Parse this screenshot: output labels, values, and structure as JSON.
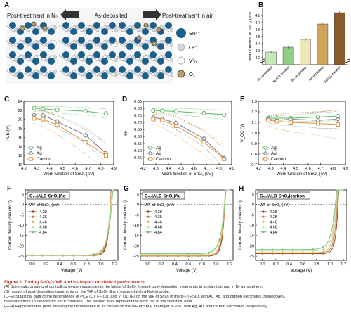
{
  "panelA": {
    "letter": "A",
    "label_left": "Post-treatment in N₂",
    "label_mid": "As-deposited",
    "label_right": "Post-treatment in air",
    "legend": [
      {
        "key": "sn",
        "label": "Sn⁴⁺",
        "color": "#1c5f8a"
      },
      {
        "key": "o",
        "label": "O²⁻",
        "color": "#d4d4d4"
      },
      {
        "key": "vo",
        "label": "V⁰ₒ",
        "color": "#ffffff"
      },
      {
        "key": "o2",
        "label": "O₂",
        "color": "#b99a6b"
      }
    ]
  },
  "panelB": {
    "letter": "B",
    "ylabel": "Work function of SnO₂ (eV)",
    "categories": [
      "N₂-annealed",
      "N₂/UV treated",
      "As-deposited",
      "Air-annealed",
      "Air/UV treated"
    ]
  },
  "lineLegend": [
    {
      "label": "Ag",
      "color": "#5cb85c",
      "marker": "circle"
    },
    {
      "label": "Au",
      "color": "#7a7a8a",
      "marker": "diamond"
    },
    {
      "label": "Carbon",
      "color": "#e0913d",
      "marker": "square"
    }
  ],
  "jvLegendTitle": "WF of SnO₂ (eV)",
  "jvLegendColors": [
    "#8b3a14",
    "#c4772f",
    "#e3b06a",
    "#b8dc9c",
    "#78c27a"
  ],
  "chart_data": [
    {
      "type": "bar",
      "panel": "B",
      "categories": [
        "N₂-annealed",
        "N₂/UV treated",
        "As-deposited",
        "Air-annealed",
        "Air/UV treated"
      ],
      "values": [
        4.28,
        4.35,
        4.46,
        4.68,
        4.84
      ],
      "colors": [
        "#c7e7b8",
        "#8fcf86",
        "#efe6b8",
        "#cfa45a",
        "#8a5a2e"
      ],
      "ylim": [
        4.1,
        4.9
      ],
      "yticks": [
        4.2,
        4.3,
        4.4,
        4.5,
        4.6,
        4.7,
        4.8
      ],
      "ylabel": "Work function of SnO₂ (eV)"
    },
    {
      "type": "line",
      "panel": "C",
      "ylabel": "PCE (%)",
      "xlabel": "Work function of SnO₂ (eV)",
      "x": [
        4.28,
        4.35,
        4.46,
        4.68,
        4.84
      ],
      "xlim": [
        4.2,
        4.9
      ],
      "xticks": [
        4.2,
        4.3,
        4.4,
        4.5,
        4.6,
        4.7,
        4.8,
        4.9
      ],
      "ylim": [
        10,
        24
      ],
      "yticks": [
        10,
        12,
        14,
        16,
        18,
        20,
        22,
        24
      ],
      "series": [
        {
          "name": "Ag",
          "values": [
            22.5,
            22.3,
            22.1,
            21.8,
            21.3
          ]
        },
        {
          "name": "Au",
          "values": [
            21.0,
            20.9,
            19.5,
            16.5,
            12.5
          ]
        },
        {
          "name": "Carbon",
          "values": [
            20.2,
            20.0,
            18.8,
            15.0,
            12.0
          ]
        }
      ]
    },
    {
      "type": "line",
      "panel": "D",
      "ylabel": "FF",
      "xlabel": "Work function of SnO₂ (eV)",
      "x": [
        4.28,
        4.35,
        4.46,
        4.68,
        4.84
      ],
      "xlim": [
        4.2,
        4.9
      ],
      "xticks": [
        4.2,
        4.3,
        4.4,
        4.5,
        4.6,
        4.7,
        4.8,
        4.9
      ],
      "ylim": [
        0.4,
        0.85
      ],
      "yticks": [
        0.45,
        0.5,
        0.55,
        0.6,
        0.65,
        0.7,
        0.75,
        0.8,
        0.85
      ],
      "series": [
        {
          "name": "Ag",
          "values": [
            0.785,
            0.782,
            0.778,
            0.765,
            0.755
          ]
        },
        {
          "name": "Au",
          "values": [
            0.735,
            0.725,
            0.695,
            0.585,
            0.445
          ]
        },
        {
          "name": "Carbon",
          "values": [
            0.722,
            0.715,
            0.675,
            0.56,
            0.44
          ]
        }
      ]
    },
    {
      "type": "line",
      "panel": "E",
      "ylabel": "V_OC (V)",
      "xlabel": "Work function of SnO₂ (eV)",
      "x": [
        4.28,
        4.35,
        4.46,
        4.68,
        4.84
      ],
      "xlim": [
        4.2,
        4.9
      ],
      "xticks": [
        4.2,
        4.3,
        4.4,
        4.5,
        4.6,
        4.7,
        4.8,
        4.9
      ],
      "ylim": [
        0.7,
        1.3
      ],
      "yticks": [
        0.7,
        0.8,
        0.9,
        1.0,
        1.1,
        1.2,
        1.3
      ],
      "series": [
        {
          "name": "Ag",
          "values": [
            1.14,
            1.14,
            1.14,
            1.15,
            1.16
          ]
        },
        {
          "name": "Au",
          "values": [
            1.13,
            1.12,
            1.13,
            1.12,
            1.13
          ]
        },
        {
          "name": "Carbon",
          "values": [
            1.12,
            1.11,
            1.1,
            1.09,
            1.08
          ]
        }
      ]
    },
    {
      "type": "line",
      "panel": "F",
      "title": "C₆₀|ALD-SnOₓ|Ag",
      "xlabel": "Voltage (V)",
      "ylabel": "Current density (mA cm⁻²)",
      "xlim": [
        -0.1,
        1.25
      ],
      "xticks": [
        0.0,
        0.2,
        0.4,
        0.6,
        0.8,
        1.0,
        1.2
      ],
      "ylim": [
        -27,
        7
      ],
      "yticks": [
        -25,
        -20,
        -15,
        -10,
        -5,
        0,
        5
      ],
      "series": [
        {
          "name": "4.28",
          "jsc": -24.7,
          "voc": 1.14
        },
        {
          "name": "4.35",
          "jsc": -24.7,
          "voc": 1.14
        },
        {
          "name": "4.46",
          "jsc": -24.6,
          "voc": 1.14
        },
        {
          "name": "4.68",
          "jsc": -24.6,
          "voc": 1.15
        },
        {
          "name": "4.84",
          "jsc": -24.5,
          "voc": 1.16
        }
      ]
    },
    {
      "type": "line",
      "panel": "G",
      "title": "C₆₀|ALD-SnOₓ|Au",
      "xlabel": "Voltage (V)",
      "ylabel": "Current density (mA cm⁻²)",
      "xlim": [
        -0.1,
        1.25
      ],
      "xticks": [
        0.0,
        0.2,
        0.4,
        0.6,
        0.8,
        1.0,
        1.2
      ],
      "ylim": [
        -27,
        7
      ],
      "yticks": [
        -25,
        -20,
        -15,
        -10,
        -5,
        0,
        5
      ],
      "series": [
        {
          "name": "4.28",
          "jsc": -24.9,
          "voc": 1.13
        },
        {
          "name": "4.35",
          "jsc": -24.9,
          "voc": 1.13
        },
        {
          "name": "4.46",
          "jsc": -24.7,
          "voc": 1.13
        },
        {
          "name": "4.68",
          "jsc": -24.2,
          "voc": 1.12
        },
        {
          "name": "4.84",
          "jsc": -23.8,
          "voc": 1.13
        }
      ]
    },
    {
      "type": "line",
      "panel": "H",
      "title": "C₆₀|ALD-SnOₓ|carbon",
      "xlabel": "Voltage (V)",
      "ylabel": "Current density (mA cm⁻²)",
      "xlim": [
        -0.1,
        1.25
      ],
      "xticks": [
        0.0,
        0.2,
        0.4,
        0.6,
        0.8,
        1.0,
        1.2
      ],
      "ylim": [
        -27,
        7
      ],
      "yticks": [
        -25,
        -20,
        -15,
        -10,
        -5,
        0,
        5
      ],
      "series": [
        {
          "name": "4.28",
          "jsc": -23.8,
          "voc": 1.12
        },
        {
          "name": "4.35",
          "jsc": -23.6,
          "voc": 1.11
        },
        {
          "name": "4.46",
          "jsc": -23.3,
          "voc": 1.1
        },
        {
          "name": "4.68",
          "jsc": -22.5,
          "voc": 1.09
        },
        {
          "name": "4.84",
          "jsc": -21.8,
          "voc": 1.08
        }
      ]
    }
  ],
  "caption": {
    "title": "Figure 3. Tuning SnOₓ's WF and its impact on device performance",
    "lines": [
      "(A) Schematic drawing of controlling oxygen vacancies in the lattice of SnO₂ through post-deposition treatments in ambient air and in N₂ atmosphere.",
      "(B) Impact of post-deposition treatments on the WF of SnOₓ film, measured with a Kelvin probe.",
      "(C–E) Statistical data of the dependence of PCE (C), FF (D), and V_OC (E) on the WF of SnOₓ in the p-i-n PSCs with Au, Ag, and carbon electrodes, respectively,",
      "measured from 15 devices for each condition. The dashed lines represent the error bar of the statistical data.",
      "(F–H) Representative plots showing the dependence of JV curves on the WF of SnOₓ interlayer in PSC with Ag, Au, and carbon electrodes, respectively."
    ]
  }
}
